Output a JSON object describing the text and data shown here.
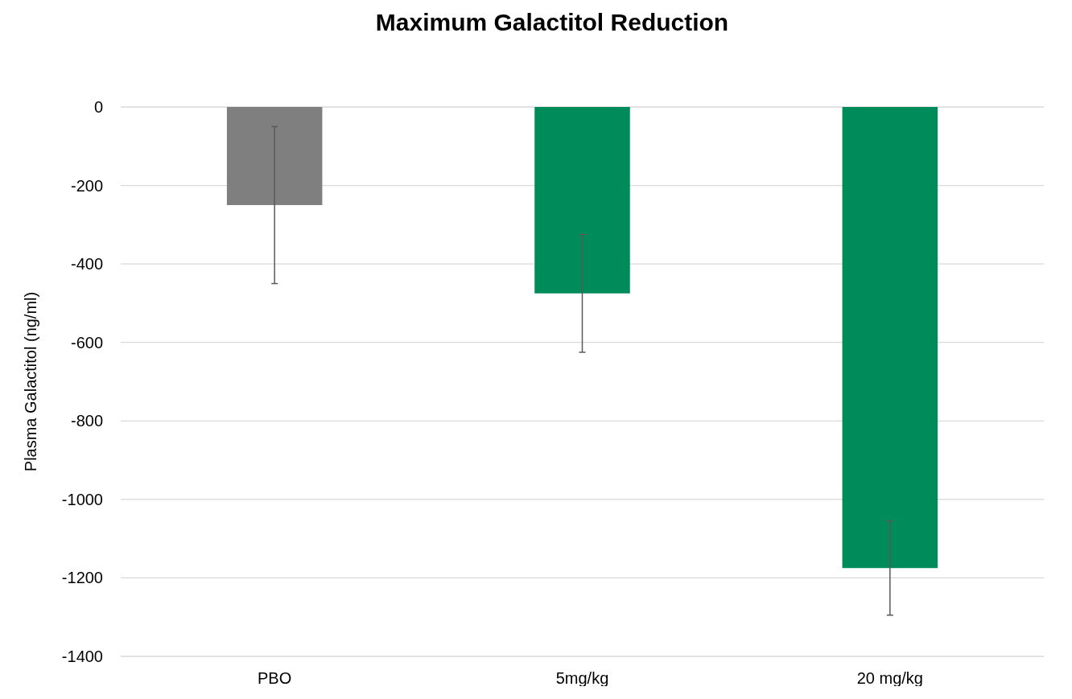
{
  "chart_data": {
    "type": "bar",
    "title": "Maximum Galactitol Reduction",
    "ylabel": "Plasma Galactitol (ng/ml)",
    "categories": [
      "PBO",
      "5mg/kg",
      "20 mg/kg"
    ],
    "values": [
      -250,
      -475,
      -1175
    ],
    "colors": [
      "#7f7f7f",
      "#008c5a",
      "#008c5a"
    ],
    "errors": [
      200,
      150,
      120
    ],
    "ylim": [
      -1400,
      0
    ],
    "yticks": [
      0,
      -200,
      -400,
      -600,
      -800,
      -1000,
      -1200,
      -1400
    ],
    "grid": "y"
  }
}
